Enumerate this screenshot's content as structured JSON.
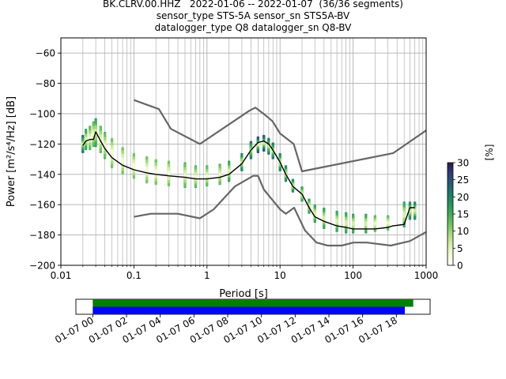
{
  "chart_data": {
    "type": "heatmap",
    "title_lines": [
      "BK.CLRV.00.HHZ   2022-01-06 -- 2022-01-07  (36/36 segments)",
      "sensor_type STS-5A sensor_sn STS5A-BV",
      "datalogger_type Q8 datalogger_sn Q8-BV"
    ],
    "xlabel": "Period [s]",
    "ylabel": "Power [m²/s⁴/Hz] [dB]",
    "x_scale": "log",
    "xlim": [
      0.01,
      1000
    ],
    "ylim": [
      -200,
      -50
    ],
    "x_ticks": [
      {
        "value": 0.01,
        "label": "0.01"
      },
      {
        "value": 0.1,
        "label": "0.1"
      },
      {
        "value": 1,
        "label": "1"
      },
      {
        "value": 10,
        "label": "10"
      },
      {
        "value": 100,
        "label": "100"
      },
      {
        "value": 1000,
        "label": "1000"
      }
    ],
    "y_ticks": [
      {
        "value": -60,
        "label": "−60"
      },
      {
        "value": -80,
        "label": "−80"
      },
      {
        "value": -100,
        "label": "−100"
      },
      {
        "value": -120,
        "label": "−120"
      },
      {
        "value": -140,
        "label": "−140"
      },
      {
        "value": -160,
        "label": "−160"
      },
      {
        "value": -180,
        "label": "−180"
      },
      {
        "value": -200,
        "label": "−200"
      }
    ],
    "grid": true,
    "colorbar": {
      "label": "[%]",
      "range": [
        0,
        30
      ],
      "ticks": [
        {
          "value": 0,
          "label": "0"
        },
        {
          "value": 5,
          "label": "5"
        },
        {
          "value": 10,
          "label": "10"
        },
        {
          "value": 15,
          "label": "15"
        },
        {
          "value": 20,
          "label": "20"
        },
        {
          "value": 25,
          "label": "25"
        },
        {
          "value": 30,
          "label": "30"
        }
      ],
      "colors": [
        "#ffffff",
        "#f2f9d6",
        "#d6efa8",
        "#a6db78",
        "#6cc45c",
        "#3fae5a",
        "#22955f",
        "#1b7a68",
        "#235a78",
        "#2e3a7a",
        "#2a1a52"
      ]
    },
    "mode_curve": {
      "x": [
        0.02,
        0.022,
        0.025,
        0.028,
        0.03,
        0.035,
        0.04,
        0.05,
        0.07,
        0.1,
        0.15,
        0.2,
        0.3,
        0.5,
        0.7,
        1,
        1.5,
        2,
        3,
        4,
        5,
        6,
        7,
        8,
        10,
        12,
        15,
        20,
        25,
        30,
        40,
        60,
        80,
        100,
        150,
        200,
        300,
        350,
        500,
        600,
        700
      ],
      "y": [
        -121,
        -118,
        -117,
        -117,
        -112,
        -118,
        -123,
        -129,
        -134,
        -137,
        -139,
        -140,
        -141,
        -142,
        -143,
        -143,
        -142,
        -140,
        -133,
        -124,
        -119,
        -118,
        -120,
        -124,
        -132,
        -140,
        -148,
        -153,
        -162,
        -168,
        -171,
        -174,
        -175,
        -176,
        -176,
        -176,
        -175,
        -174,
        -173,
        -162,
        -162
      ]
    },
    "noise_model_high": {
      "x": [
        0.1,
        0.22,
        0.32,
        0.8,
        3.8,
        4.6,
        6.3,
        7.9,
        10,
        15.4,
        20,
        354.8,
        1000
      ],
      "y": [
        -91,
        -97,
        -110,
        -120,
        -98,
        -96,
        -101,
        -105,
        -113,
        -120,
        -138,
        -126,
        -111
      ]
    },
    "noise_model_low": {
      "x": [
        0.1,
        0.17,
        0.4,
        0.8,
        1.24,
        2.4,
        4.3,
        5,
        6,
        10,
        12,
        15.6,
        21.9,
        31.6,
        45,
        70,
        101,
        154,
        328,
        600,
        1000
      ],
      "y": [
        -168,
        -166,
        -166,
        -169,
        -163,
        -148,
        -141,
        -141,
        -150,
        -163,
        -166,
        -162,
        -177,
        -185,
        -187,
        -187,
        -185,
        -185,
        -187,
        -184,
        -178
      ]
    },
    "density_cells": [
      {
        "x": 0.02,
        "y_range": [
          -126,
          -114
        ],
        "level": 8
      },
      {
        "x": 0.022,
        "y_range": [
          -124,
          -110
        ],
        "level": 6
      },
      {
        "x": 0.025,
        "y_range": [
          -124,
          -108
        ],
        "level": 5
      },
      {
        "x": 0.028,
        "y_range": [
          -122,
          -105
        ],
        "level": 5
      },
      {
        "x": 0.03,
        "y_range": [
          -122,
          -103
        ],
        "level": 6
      },
      {
        "x": 0.035,
        "y_range": [
          -126,
          -108
        ],
        "level": 5
      },
      {
        "x": 0.04,
        "y_range": [
          -130,
          -112
        ],
        "level": 5
      },
      {
        "x": 0.05,
        "y_range": [
          -136,
          -116
        ],
        "level": 4
      },
      {
        "x": 0.07,
        "y_range": [
          -140,
          -122
        ],
        "level": 4
      },
      {
        "x": 0.1,
        "y_range": [
          -143,
          -126
        ],
        "level": 4
      },
      {
        "x": 0.15,
        "y_range": [
          -146,
          -128
        ],
        "level": 4
      },
      {
        "x": 0.2,
        "y_range": [
          -147,
          -130
        ],
        "level": 4
      },
      {
        "x": 0.3,
        "y_range": [
          -148,
          -131
        ],
        "level": 4
      },
      {
        "x": 0.5,
        "y_range": [
          -149,
          -132
        ],
        "level": 5
      },
      {
        "x": 0.7,
        "y_range": [
          -149,
          -134
        ],
        "level": 5
      },
      {
        "x": 1,
        "y_range": [
          -148,
          -134
        ],
        "level": 5
      },
      {
        "x": 1.5,
        "y_range": [
          -147,
          -133
        ],
        "level": 5
      },
      {
        "x": 2,
        "y_range": [
          -145,
          -131
        ],
        "level": 6
      },
      {
        "x": 3,
        "y_range": [
          -138,
          -126
        ],
        "level": 7
      },
      {
        "x": 4,
        "y_range": [
          -130,
          -118
        ],
        "level": 8
      },
      {
        "x": 5,
        "y_range": [
          -126,
          -115
        ],
        "level": 9
      },
      {
        "x": 6,
        "y_range": [
          -125,
          -114
        ],
        "level": 9
      },
      {
        "x": 7,
        "y_range": [
          -127,
          -116
        ],
        "level": 8
      },
      {
        "x": 8,
        "y_range": [
          -130,
          -119
        ],
        "level": 8
      },
      {
        "x": 10,
        "y_range": [
          -138,
          -126
        ],
        "level": 7
      },
      {
        "x": 12,
        "y_range": [
          -145,
          -134
        ],
        "level": 7
      },
      {
        "x": 15,
        "y_range": [
          -152,
          -143
        ],
        "level": 7
      },
      {
        "x": 20,
        "y_range": [
          -158,
          -148
        ],
        "level": 6
      },
      {
        "x": 25,
        "y_range": [
          -166,
          -156
        ],
        "level": 6
      },
      {
        "x": 30,
        "y_range": [
          -172,
          -160
        ],
        "level": 6
      },
      {
        "x": 40,
        "y_range": [
          -176,
          -162
        ],
        "level": 6
      },
      {
        "x": 60,
        "y_range": [
          -178,
          -164
        ],
        "level": 6
      },
      {
        "x": 80,
        "y_range": [
          -179,
          -165
        ],
        "level": 6
      },
      {
        "x": 100,
        "y_range": [
          -179,
          -166
        ],
        "level": 6
      },
      {
        "x": 150,
        "y_range": [
          -179,
          -166
        ],
        "level": 6
      },
      {
        "x": 200,
        "y_range": [
          -178,
          -167
        ],
        "level": 5
      },
      {
        "x": 300,
        "y_range": [
          -177,
          -167
        ],
        "level": 5
      },
      {
        "x": 500,
        "y_range": [
          -175,
          -158
        ],
        "level": 6
      },
      {
        "x": 600,
        "y_range": [
          -170,
          -158
        ],
        "level": 7
      },
      {
        "x": 700,
        "y_range": [
          -170,
          -158
        ],
        "level": 7
      }
    ]
  },
  "timeline": {
    "ticks": [
      "01-07 00",
      "01-07 02",
      "01-07 04",
      "01-07 06",
      "01-07 08",
      "01-07 10",
      "01-07 12",
      "01-07 14",
      "01-07 16",
      "01-07 18"
    ],
    "range_hours": [
      -1,
      20
    ],
    "bars": [
      {
        "color": "#008000",
        "start_hour": 0,
        "end_hour": 19
      },
      {
        "color": "#0000ff",
        "start_hour": 0,
        "end_hour": 18.5
      }
    ]
  },
  "colors": {
    "mode_curve": "#000000",
    "noise_model": "#666666",
    "grid": "#b0b0b0"
  }
}
